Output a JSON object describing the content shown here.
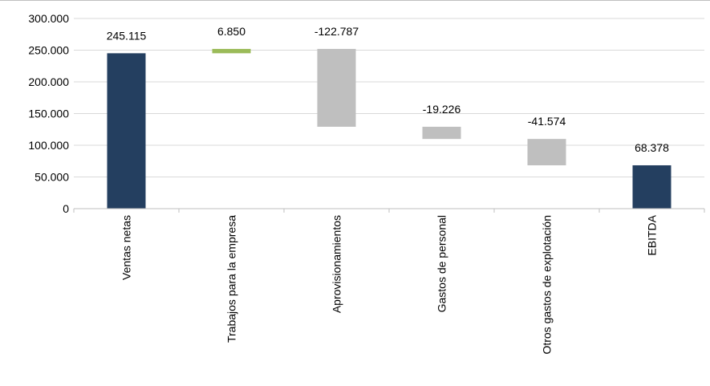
{
  "chart_data": {
    "type": "bar",
    "subtype": "waterfall",
    "title": "",
    "xlabel": "",
    "ylabel": "",
    "ylim": [
      0,
      300000
    ],
    "yticks": [
      0,
      50000,
      100000,
      150000,
      200000,
      250000,
      300000
    ],
    "ytick_labels": [
      "0",
      "50.000",
      "100.000",
      "150.000",
      "200.000",
      "250.000",
      "300.000"
    ],
    "grid": true,
    "legend": "none",
    "categories": [
      "Ventas netas",
      "Trabajos para la empresa",
      "Aprovisionamientos",
      "Gastos de personal",
      "Otros gastos de explotación",
      "EBITDA"
    ],
    "values": [
      245115,
      6850,
      -122787,
      -19226,
      -41574,
      68378
    ],
    "bar_kind": [
      "total",
      "increase",
      "decrease",
      "decrease",
      "decrease",
      "total"
    ],
    "data_labels": [
      "245.115",
      "6.850",
      "-122.787",
      "-19.226",
      "-41.574",
      "68.378"
    ],
    "colors": {
      "total": "#243f60",
      "increase": "#9bbb59",
      "decrease": "#bfbfbf",
      "grid": "#d9d9d9",
      "axis": "#bfbfbf"
    }
  }
}
